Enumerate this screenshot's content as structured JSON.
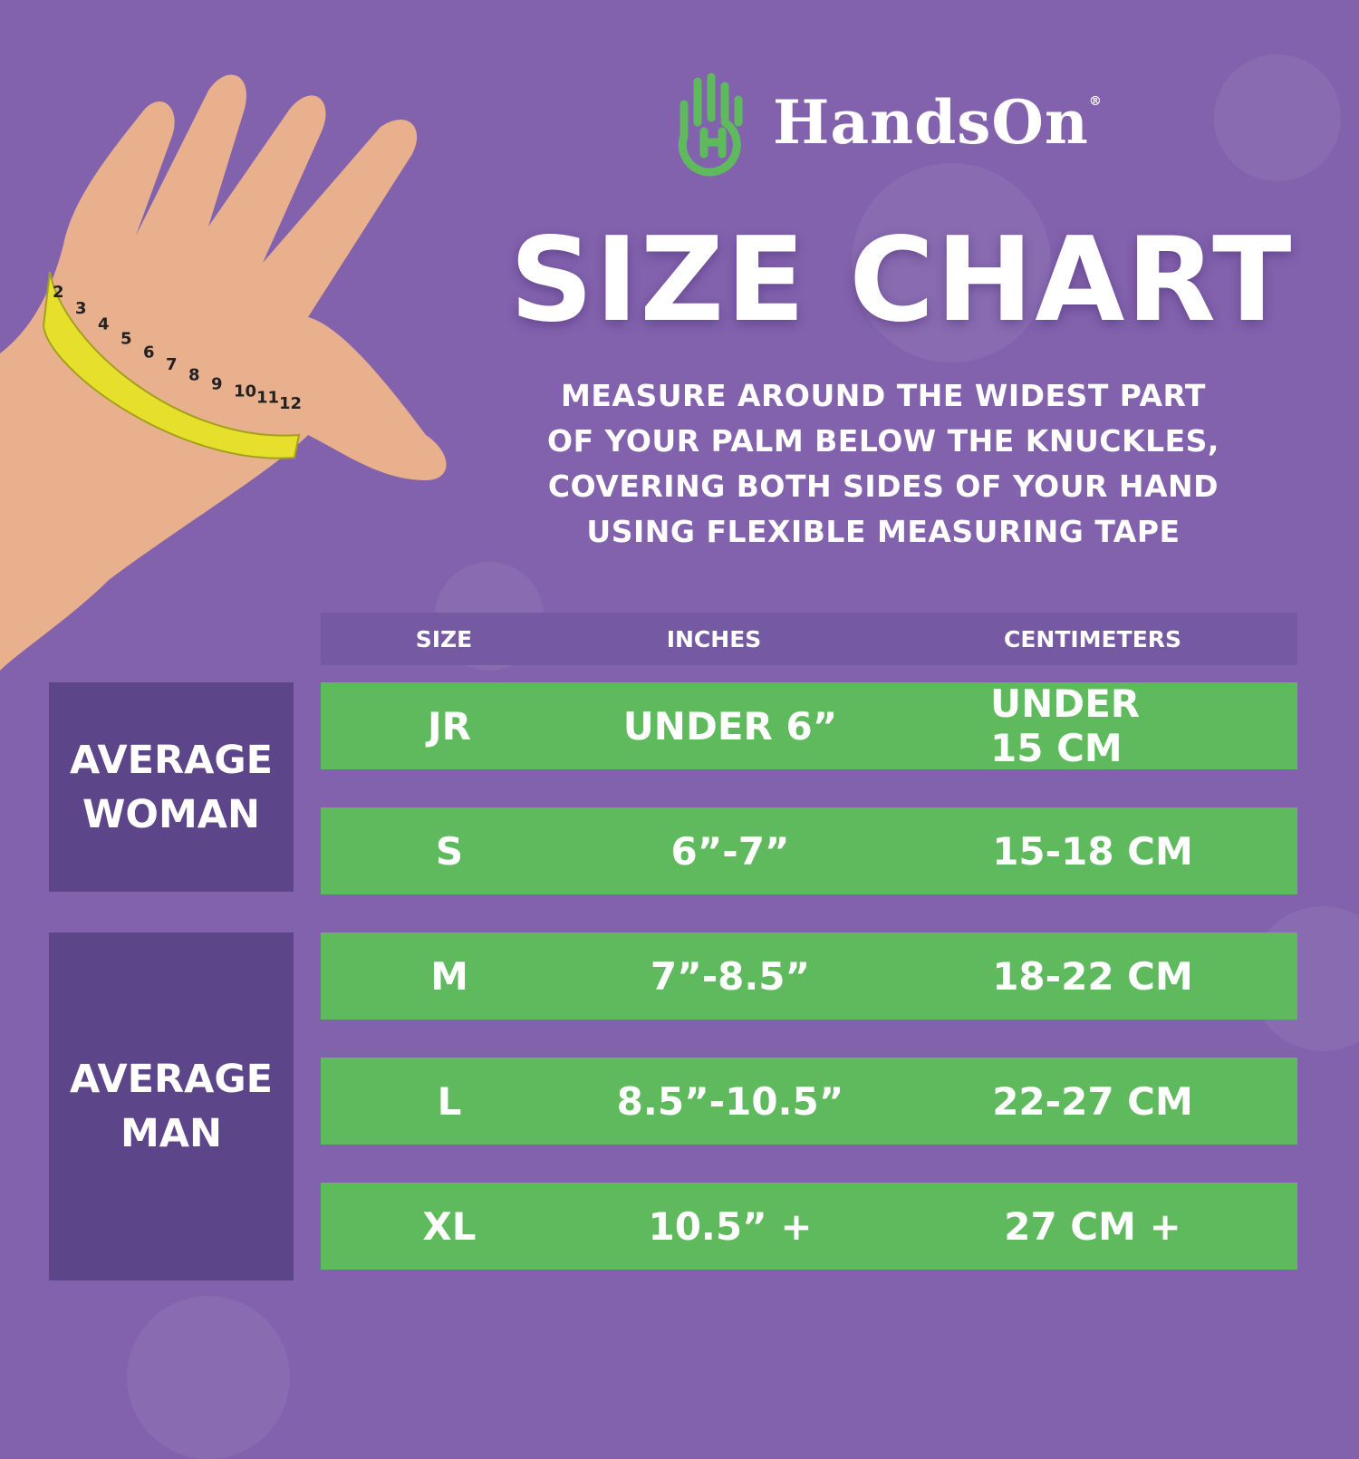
{
  "brand": {
    "name": "HandsOn",
    "registered": "®",
    "logo_color": "#5fba5e"
  },
  "title": "SIZE CHART",
  "instructions": [
    "MEASURE AROUND THE WIDEST PART",
    "OF YOUR PALM BELOW THE KNUCKLES,",
    "COVERING BOTH SIDES OF YOUR HAND",
    "USING FLEXIBLE MEASURING TAPE"
  ],
  "table": {
    "headers": [
      "SIZE",
      "INCHES",
      "CENTIMETERS"
    ],
    "groups": [
      {
        "label": [
          "AVERAGE",
          "WOMAN"
        ]
      },
      {
        "label": [
          "AVERAGE",
          "MAN"
        ]
      }
    ],
    "rows": [
      {
        "size": "JR",
        "inches": "UNDER 6”",
        "cm": "UNDER 15 CM"
      },
      {
        "size": "S",
        "inches": "6”-7”",
        "cm": "15-18 CM"
      },
      {
        "size": "M",
        "inches": "7”-8.5”",
        "cm": "18-22 CM"
      },
      {
        "size": "L",
        "inches": "8.5”-10.5”",
        "cm": "22-27 CM"
      },
      {
        "size": "XL",
        "inches": "10.5” +",
        "cm": "27 CM +"
      }
    ]
  },
  "tape_numbers": [
    "2",
    "3",
    "4",
    "5",
    "6",
    "7",
    "8",
    "9",
    "10",
    "11",
    "12"
  ],
  "colors": {
    "background": "#8262ad",
    "row": "#5fba5e",
    "group": "#5c4589",
    "header": "#7559a3"
  }
}
